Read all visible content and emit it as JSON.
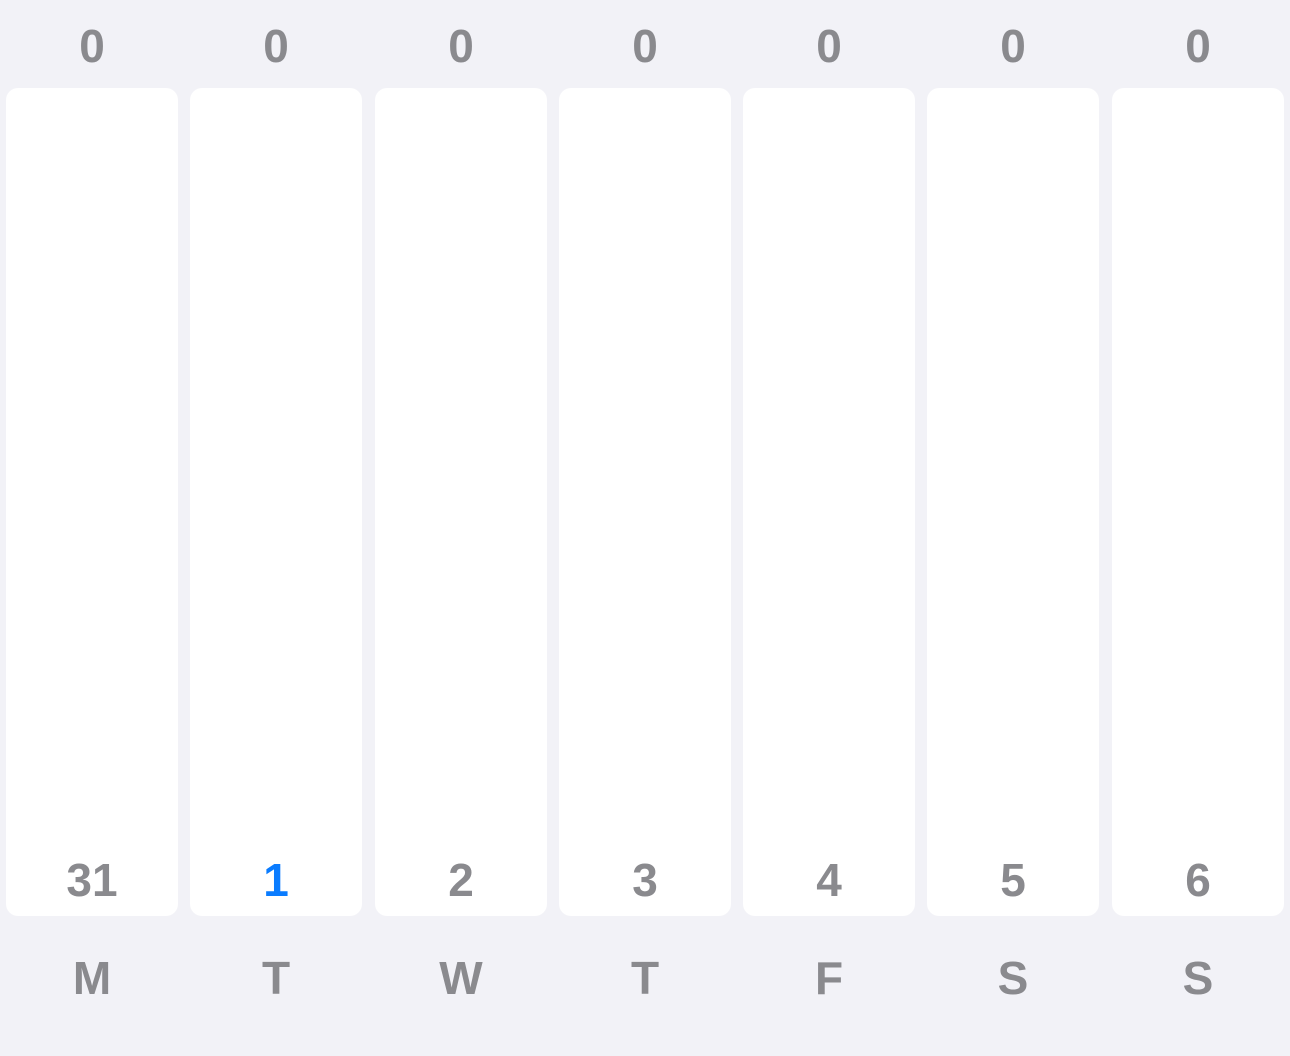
{
  "colors": {
    "background": "#f2f2f7",
    "card": "#ffffff",
    "text": "#8a8a8e",
    "today_accent": "#0a7cff"
  },
  "days": [
    {
      "count": "0",
      "date": "31",
      "weekday": "M",
      "today": false
    },
    {
      "count": "0",
      "date": "1",
      "weekday": "T",
      "today": true
    },
    {
      "count": "0",
      "date": "2",
      "weekday": "W",
      "today": false
    },
    {
      "count": "0",
      "date": "3",
      "weekday": "T",
      "today": false
    },
    {
      "count": "0",
      "date": "4",
      "weekday": "F",
      "today": false
    },
    {
      "count": "0",
      "date": "5",
      "weekday": "S",
      "today": false
    },
    {
      "count": "0",
      "date": "6",
      "weekday": "S",
      "today": false
    }
  ]
}
